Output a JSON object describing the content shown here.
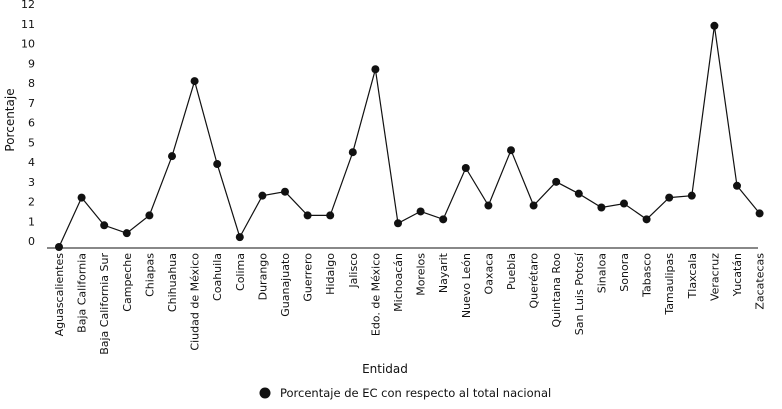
{
  "chart_data": {
    "type": "line",
    "title": "",
    "xlabel": "Entidad",
    "ylabel": "Porcentaje",
    "ylim": [
      0,
      12
    ],
    "yticks": [
      0,
      1,
      2,
      3,
      4,
      5,
      6,
      7,
      8,
      9,
      10,
      11,
      12
    ],
    "grid": false,
    "legend_position": "bottom-center",
    "marker": "filled-circle",
    "line_color": "#111111",
    "categories": [
      "Aguascalientes",
      "Baja California",
      "Baja California Sur",
      "Campeche",
      "Chiapas",
      "Chihuahua",
      "Ciudad de México",
      "Coahuila",
      "Colima",
      "Durango",
      "Guanajuato",
      "Guerrero",
      "Hidalgo",
      "Jalisco",
      "Edo. de México",
      "Michoacán",
      "Morelos",
      "Nayarit",
      "Nuevo León",
      "Oaxaca",
      "Puebla",
      "Querétaro",
      "Quintana Roo",
      "San Luis Potosí",
      "Sinaloa",
      "Sonora",
      "Tabasco",
      "Tamaulipas",
      "Tlaxcala",
      "Veracruz",
      "Yucatán",
      "Zacatecas"
    ],
    "series": [
      {
        "name": "Porcentaje de EC con respecto al total nacional",
        "values": [
          0.0,
          2.5,
          1.1,
          0.7,
          1.6,
          4.6,
          8.4,
          4.2,
          0.5,
          2.6,
          2.8,
          1.6,
          1.6,
          4.8,
          9.0,
          1.2,
          1.8,
          1.4,
          4.0,
          2.1,
          4.9,
          2.1,
          3.3,
          2.7,
          2.0,
          2.2,
          1.4,
          2.5,
          2.6,
          11.2,
          3.1,
          1.7
        ]
      }
    ]
  }
}
